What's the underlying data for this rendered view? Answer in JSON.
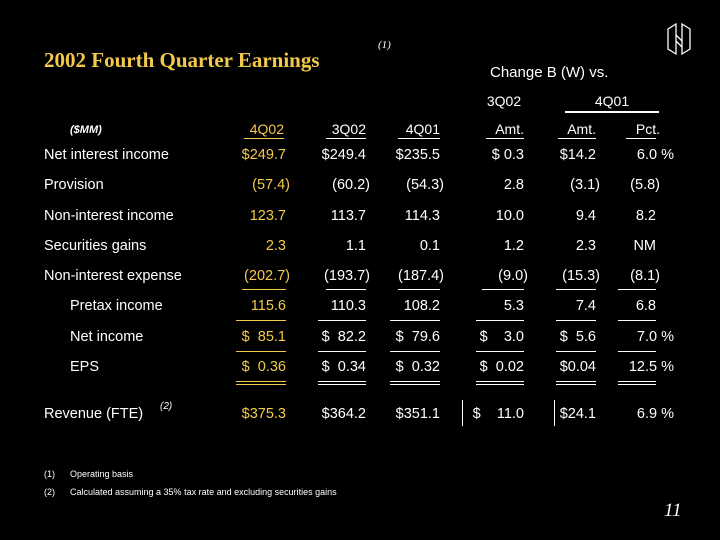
{
  "title": "2002 Fourth Quarter Earnings",
  "title_note": "(1)",
  "logo": "huntington-logo",
  "change_header": "Change B (W) vs.",
  "groups": {
    "g3q02": "3Q02",
    "g4q01": "4Q01"
  },
  "units": "($MM)",
  "columns": [
    "4Q02",
    "3Q02",
    "4Q01",
    "Amt.",
    "Amt.",
    "Pct."
  ],
  "rows": [
    {
      "label": "Net interest income",
      "values": [
        "$249.7",
        "$249.4",
        "$235.5",
        "$   0.3",
        "$14.2",
        "6.0 %"
      ]
    },
    {
      "label": "Provision",
      "values": [
        "(57.4)",
        "(60.2)",
        "(54.3)",
        "2.8",
        "(3.1)",
        "(5.8)"
      ]
    },
    {
      "label": "Non-interest income",
      "values": [
        "123.7",
        "113.7",
        "114.3",
        "10.0",
        "9.4",
        "8.2"
      ]
    },
    {
      "label": "Securities gains",
      "values": [
        "2.3",
        "1.1",
        "0.1",
        "1.2",
        "2.3",
        "NM"
      ]
    },
    {
      "label": "Non-interest expense",
      "values": [
        "(202.7)",
        "(193.7)",
        "(187.4)",
        "(9.0)",
        "(15.3)",
        "(8.1)"
      ]
    },
    {
      "label": "Pretax income",
      "values": [
        "115.6",
        "110.3",
        "108.2",
        "5.3",
        "7.4",
        "6.8"
      ]
    },
    {
      "label": "Net income",
      "values": [
        "$  85.1",
        "$  82.2",
        "$  79.6",
        "$    3.0",
        "$  5.6",
        "7.0 %"
      ]
    },
    {
      "label": "EPS",
      "values": [
        "$  0.36",
        "$  0.34",
        "$  0.32",
        "$  0.02",
        "$0.04",
        "12.5 %"
      ]
    },
    {
      "label": "Revenue (FTE)",
      "sup": "(2)",
      "values": [
        "$375.3",
        "$364.2",
        "$351.1",
        "$    11.0",
        "$24.1",
        "6.9 %"
      ]
    }
  ],
  "footnotes": [
    {
      "num": "(1)",
      "text": "Operating basis"
    },
    {
      "num": "(2)",
      "text": "Calculated assuming a 35% tax rate and excluding securities gains"
    }
  ],
  "page_number": "11",
  "colors": {
    "accent": "#F2C94C",
    "background": "#000000",
    "text": "#FFFFFF"
  }
}
